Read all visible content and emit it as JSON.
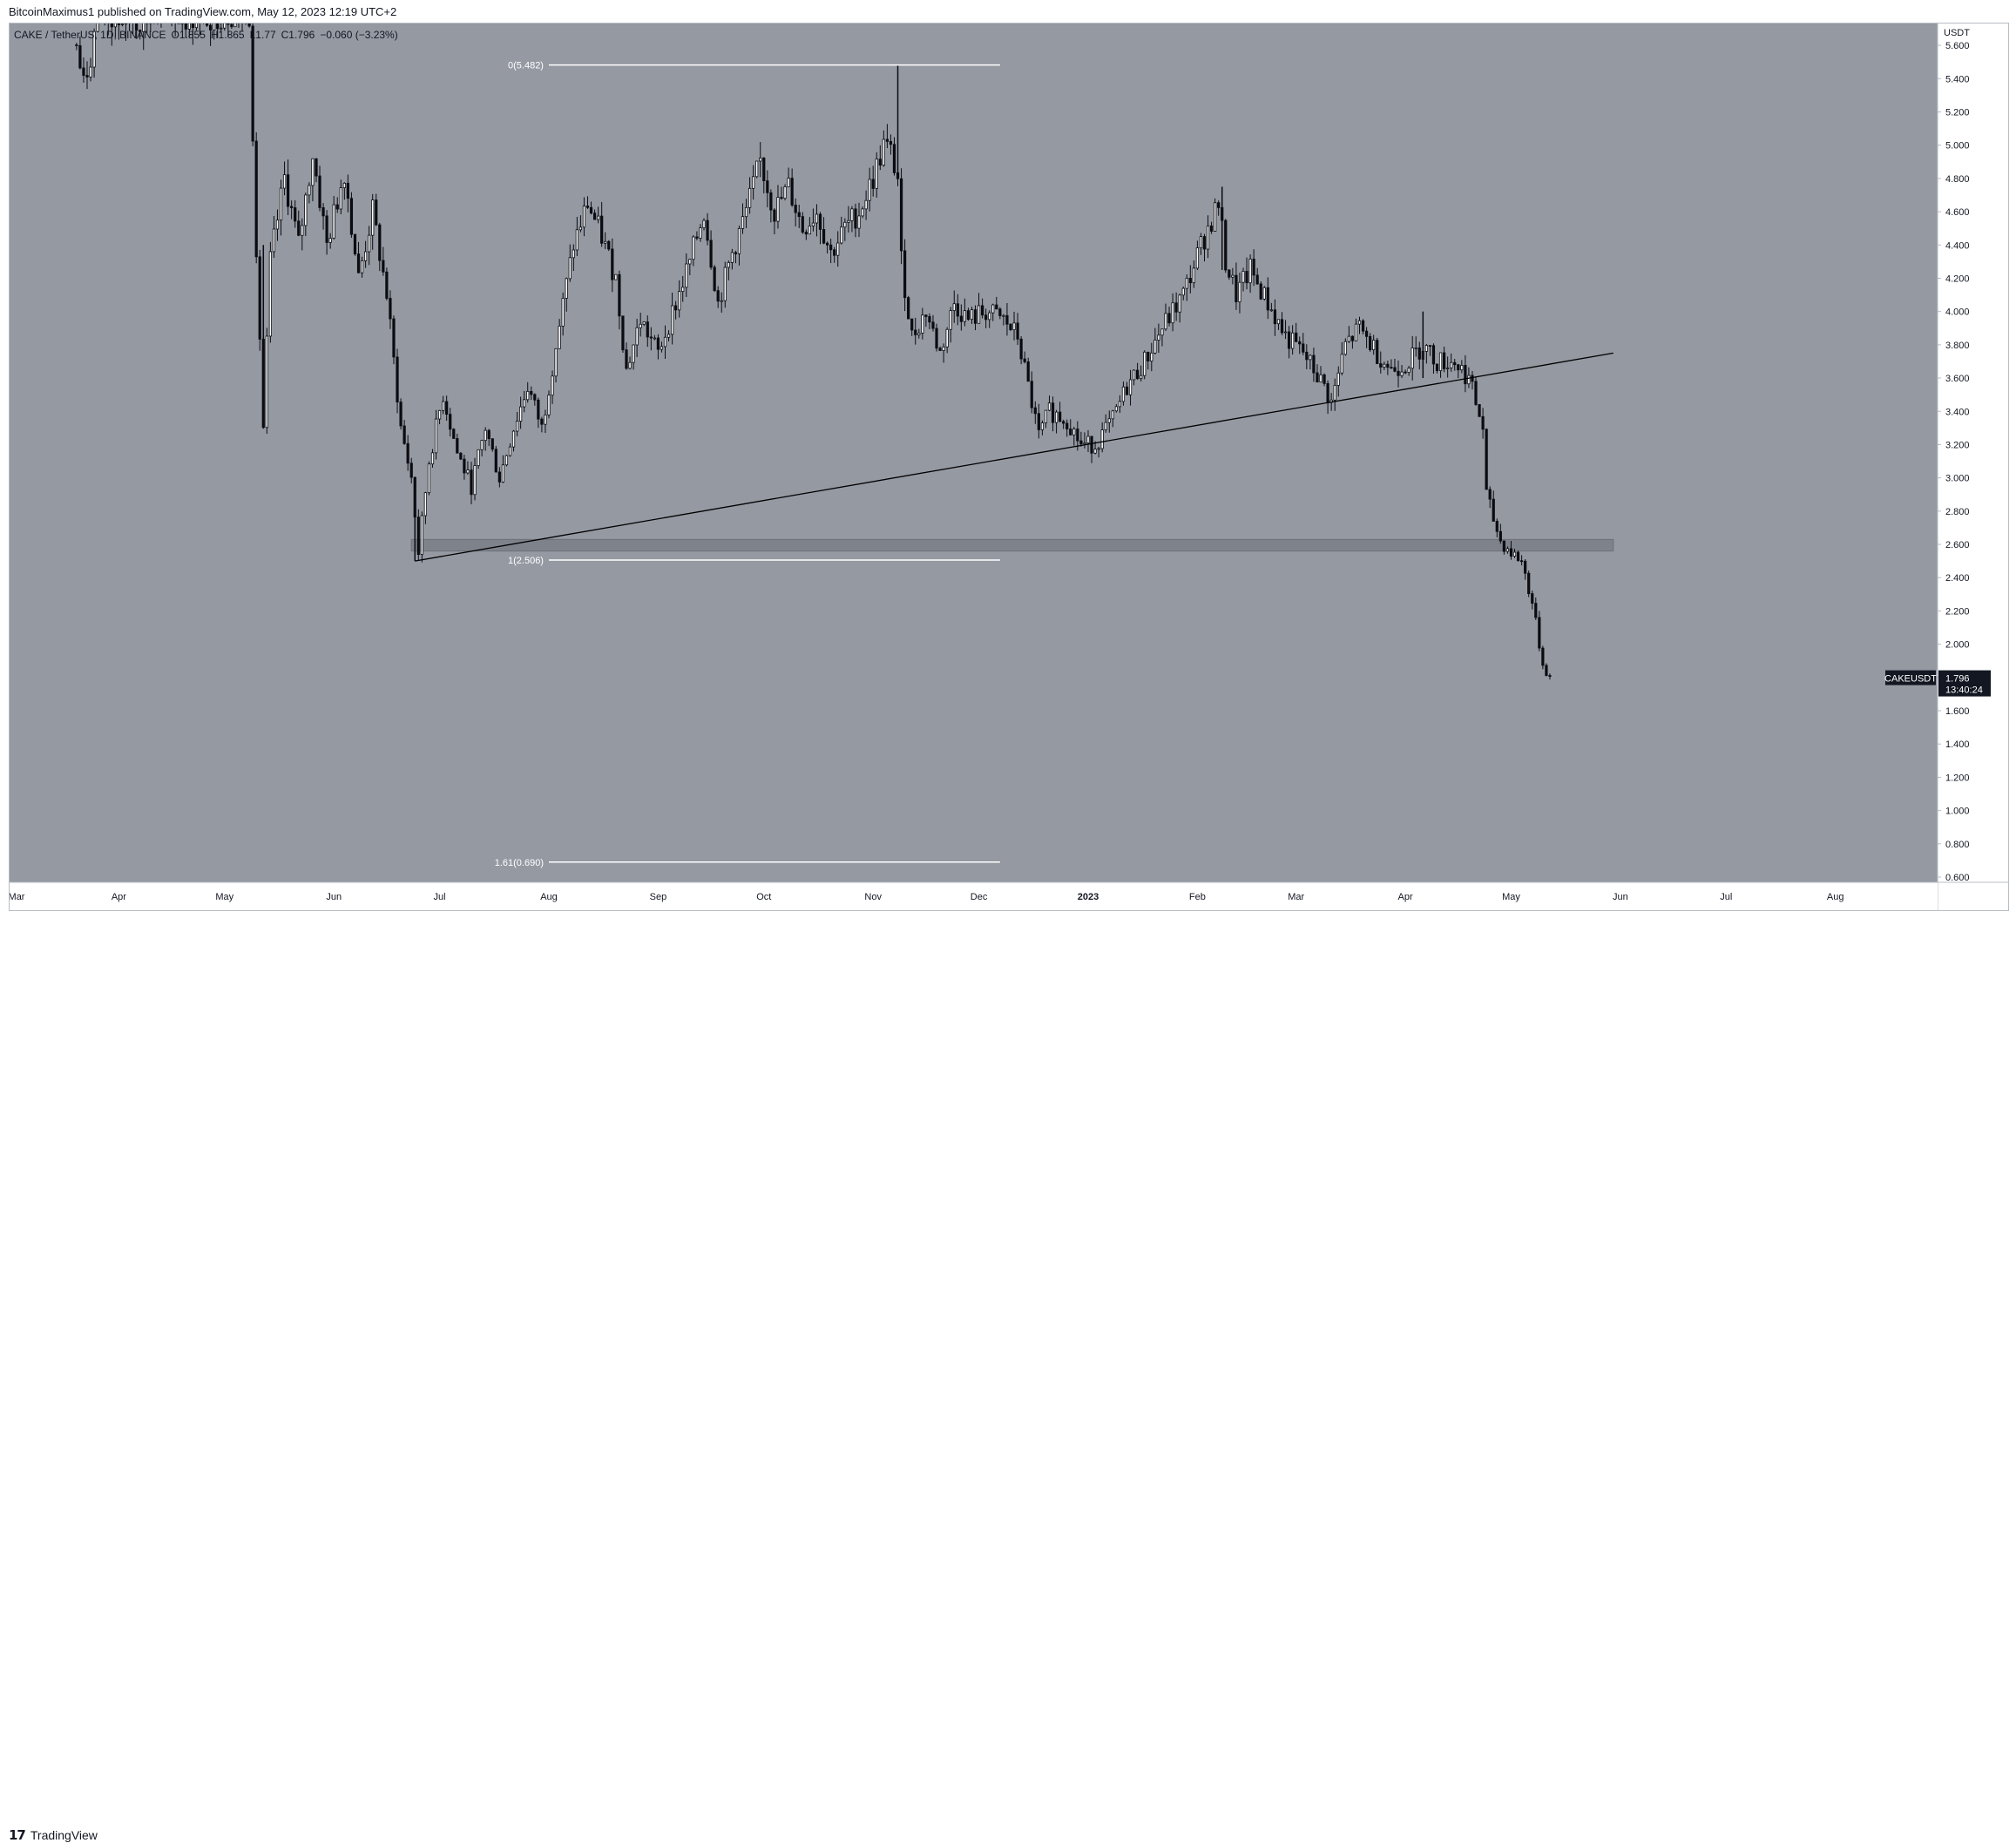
{
  "header": {
    "publish_text": "BitcoinMaximus1 published on TradingView.com, May 12, 2023 12:19 UTC+2"
  },
  "legend": {
    "symbol": "CAKE / TetherUS, 1D, BINANCE",
    "open": "O1.855",
    "high": "H1.865",
    "low": "L1.77",
    "close": "C1.796",
    "change": "−0.060 (−3.23%)"
  },
  "footer": {
    "brand": "TradingView",
    "brand_mark": "17"
  },
  "colors": {
    "plot_bg": "#9599a2",
    "candle": "#0b0d12",
    "level_line": "#ffffff",
    "zone": "#7e828a",
    "trendline": "#000000",
    "price_tag_bg": "#131722"
  },
  "chart_data": {
    "type": "candlestick",
    "currency_label": "USDT",
    "ylim": [
      0.6,
      5.7
    ],
    "y_ticks": [
      5.6,
      5.4,
      5.2,
      5.0,
      4.8,
      4.6,
      4.4,
      4.2,
      4.0,
      3.8,
      3.6,
      3.4,
      3.2,
      3.0,
      2.8,
      2.6,
      2.4,
      2.2,
      2.0,
      1.8,
      1.6,
      1.4,
      1.2,
      1.0,
      0.8,
      0.6
    ],
    "y_tick_labels": [
      "5.600",
      "5.400",
      "5.200",
      "5.000",
      "4.800",
      "4.600",
      "4.400",
      "4.200",
      "4.000",
      "3.800",
      "3.600",
      "3.400",
      "3.200",
      "3.000",
      "2.800",
      "2.600",
      "2.400",
      "2.200",
      "2.000",
      "1.800",
      "1.600",
      "1.400",
      "1.200",
      "1.000",
      "0.800",
      "0.600"
    ],
    "x_labels": [
      {
        "label": "Mar",
        "date": "2022-03-01"
      },
      {
        "label": "Apr",
        "date": "2022-04-01"
      },
      {
        "label": "May",
        "date": "2022-05-01"
      },
      {
        "label": "Jun",
        "date": "2022-06-01"
      },
      {
        "label": "Jul",
        "date": "2022-07-01"
      },
      {
        "label": "Aug",
        "date": "2022-08-01"
      },
      {
        "label": "Sep",
        "date": "2022-09-01"
      },
      {
        "label": "Oct",
        "date": "2022-10-01"
      },
      {
        "label": "Nov",
        "date": "2022-11-01"
      },
      {
        "label": "Dec",
        "date": "2022-12-01"
      },
      {
        "label": "2023",
        "date": "2023-01-01"
      },
      {
        "label": "Feb",
        "date": "2023-02-01"
      },
      {
        "label": "Mar",
        "date": "2023-03-01"
      },
      {
        "label": "Apr",
        "date": "2023-04-01"
      },
      {
        "label": "May",
        "date": "2023-05-01"
      },
      {
        "label": "Jun",
        "date": "2023-06-01"
      },
      {
        "label": "Jul",
        "date": "2023-07-01"
      },
      {
        "label": "Aug",
        "date": "2023-08-01"
      }
    ],
    "xlim": [
      "2022-03-01",
      "2023-08-30"
    ],
    "price_path": [
      [
        "2022-03-20",
        5.6
      ],
      [
        "2022-03-22",
        5.35
      ],
      [
        "2022-03-26",
        5.75
      ],
      [
        "2022-05-08",
        5.8
      ],
      [
        "2022-05-10",
        4.4
      ],
      [
        "2022-05-12",
        3.3
      ],
      [
        "2022-05-14",
        4.3
      ],
      [
        "2022-05-18",
        4.8
      ],
      [
        "2022-05-22",
        4.4
      ],
      [
        "2022-05-26",
        4.95
      ],
      [
        "2022-05-30",
        4.4
      ],
      [
        "2022-06-04",
        4.85
      ],
      [
        "2022-06-08",
        4.2
      ],
      [
        "2022-06-12",
        4.6
      ],
      [
        "2022-06-16",
        4.1
      ],
      [
        "2022-06-20",
        3.3
      ],
      [
        "2022-06-23",
        3.0
      ],
      [
        "2022-06-25",
        2.55
      ],
      [
        "2022-06-28",
        3.1
      ],
      [
        "2022-07-02",
        3.5
      ],
      [
        "2022-07-06",
        3.15
      ],
      [
        "2022-07-10",
        2.95
      ],
      [
        "2022-07-14",
        3.3
      ],
      [
        "2022-07-18",
        3.0
      ],
      [
        "2022-07-22",
        3.3
      ],
      [
        "2022-07-26",
        3.55
      ],
      [
        "2022-07-30",
        3.3
      ],
      [
        "2022-08-03",
        3.8
      ],
      [
        "2022-08-08",
        4.4
      ],
      [
        "2022-08-12",
        4.65
      ],
      [
        "2022-08-16",
        4.45
      ],
      [
        "2022-08-20",
        4.2
      ],
      [
        "2022-08-23",
        3.65
      ],
      [
        "2022-08-27",
        3.95
      ],
      [
        "2022-09-01",
        3.75
      ],
      [
        "2022-09-06",
        4.05
      ],
      [
        "2022-09-10",
        4.3
      ],
      [
        "2022-09-14",
        4.6
      ],
      [
        "2022-09-18",
        4.05
      ],
      [
        "2022-09-22",
        4.35
      ],
      [
        "2022-09-26",
        4.6
      ],
      [
        "2022-09-30",
        4.9
      ],
      [
        "2022-10-04",
        4.6
      ],
      [
        "2022-10-08",
        4.75
      ],
      [
        "2022-10-12",
        4.5
      ],
      [
        "2022-10-16",
        4.6
      ],
      [
        "2022-10-20",
        4.35
      ],
      [
        "2022-10-24",
        4.5
      ],
      [
        "2022-10-28",
        4.6
      ],
      [
        "2022-11-01",
        4.8
      ],
      [
        "2022-11-04",
        5.0
      ],
      [
        "2022-11-06",
        4.95
      ],
      [
        "2022-11-08",
        4.8
      ],
      [
        "2022-11-09",
        4.3
      ],
      [
        "2022-11-12",
        3.85
      ],
      [
        "2022-11-16",
        4.0
      ],
      [
        "2022-11-20",
        3.75
      ],
      [
        "2022-11-24",
        4.05
      ],
      [
        "2022-11-28",
        3.95
      ],
      [
        "2022-12-03",
        4.0
      ],
      [
        "2022-12-08",
        3.95
      ],
      [
        "2022-12-12",
        3.85
      ],
      [
        "2022-12-16",
        3.45
      ],
      [
        "2022-12-18",
        3.25
      ],
      [
        "2022-12-21",
        3.4
      ],
      [
        "2022-12-26",
        3.35
      ],
      [
        "2022-12-30",
        3.2
      ],
      [
        "2023-01-03",
        3.2
      ],
      [
        "2023-01-08",
        3.35
      ],
      [
        "2023-01-12",
        3.55
      ],
      [
        "2023-01-17",
        3.7
      ],
      [
        "2023-01-22",
        3.9
      ],
      [
        "2023-01-28",
        4.1
      ],
      [
        "2023-02-03",
        4.45
      ],
      [
        "2023-02-07",
        4.65
      ],
      [
        "2023-02-09",
        4.3
      ],
      [
        "2023-02-12",
        4.1
      ],
      [
        "2023-02-16",
        4.25
      ],
      [
        "2023-02-21",
        4.05
      ],
      [
        "2023-02-26",
        3.85
      ],
      [
        "2023-03-03",
        3.75
      ],
      [
        "2023-03-09",
        3.55
      ],
      [
        "2023-03-11",
        3.45
      ],
      [
        "2023-03-15",
        3.8
      ],
      [
        "2023-03-19",
        3.9
      ],
      [
        "2023-03-24",
        3.75
      ],
      [
        "2023-03-28",
        3.65
      ],
      [
        "2023-04-02",
        3.7
      ],
      [
        "2023-04-06",
        3.8
      ],
      [
        "2023-04-10",
        3.7
      ],
      [
        "2023-04-15",
        3.7
      ],
      [
        "2023-04-19",
        3.6
      ],
      [
        "2023-04-21",
        3.45
      ],
      [
        "2023-04-23",
        3.3
      ],
      [
        "2023-04-24",
        2.9
      ],
      [
        "2023-04-26",
        2.75
      ],
      [
        "2023-04-28",
        2.62
      ],
      [
        "2023-05-01",
        2.55
      ],
      [
        "2023-05-04",
        2.5
      ],
      [
        "2023-05-07",
        2.25
      ],
      [
        "2023-05-09",
        2.0
      ],
      [
        "2023-05-10",
        1.88
      ],
      [
        "2023-05-12",
        1.796
      ]
    ],
    "extreme_wicks": [
      {
        "date": "2022-05-12",
        "high": 4.4,
        "low": 3.3
      },
      {
        "date": "2022-06-24",
        "high": 3.0,
        "low": 2.5
      },
      {
        "date": "2022-11-08",
        "high": 5.48,
        "low": 4.8
      },
      {
        "date": "2023-02-08",
        "high": 4.75,
        "low": 4.25
      },
      {
        "date": "2023-04-06",
        "high": 4.0,
        "low": 3.6
      }
    ],
    "fib_levels": [
      {
        "label": "0(5.482)",
        "value": 5.482
      },
      {
        "label": "1(2.506)",
        "value": 2.506
      },
      {
        "label": "1.61(0.690)",
        "value": 0.69
      }
    ],
    "fib_range": [
      "2022-08-01",
      "2022-12-07"
    ],
    "support_zone": {
      "low": 2.56,
      "high": 2.63,
      "from": "2022-06-23",
      "to": "2023-05-30"
    },
    "trendline": {
      "from": [
        "2022-06-24",
        2.5
      ],
      "to": [
        "2023-05-30",
        3.75
      ]
    },
    "last_price": {
      "symbol": "CAKEUSDT",
      "value": 1.796,
      "value_label": "1.796",
      "countdown": "13:40:24"
    }
  }
}
